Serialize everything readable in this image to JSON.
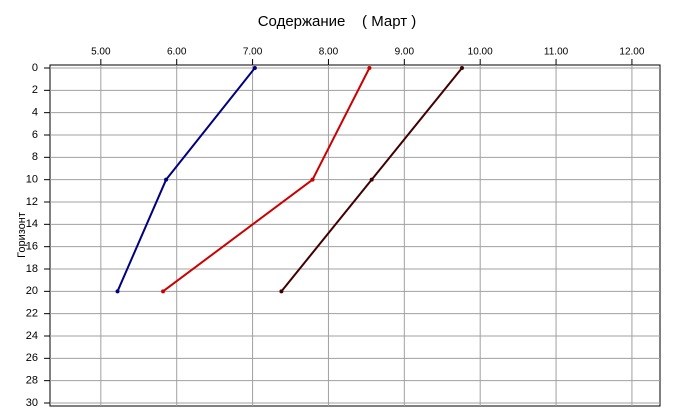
{
  "chart_data": {
    "type": "line",
    "title": "Содержание    ( Март )",
    "ylabel": "Горизонт",
    "xlim": [
      4.33,
      12.37
    ],
    "ylim": [
      0,
      30
    ],
    "y_inverted": true,
    "x_axis_position": "top",
    "grid": true,
    "xticks": [
      {
        "value": 5,
        "label": "5.00"
      },
      {
        "value": 6,
        "label": "6.00"
      },
      {
        "value": 7,
        "label": "7.00"
      },
      {
        "value": 8,
        "label": "8.00"
      },
      {
        "value": 9,
        "label": "9.00"
      },
      {
        "value": 10,
        "label": "10.00"
      },
      {
        "value": 11,
        "label": "11.00"
      },
      {
        "value": 12,
        "label": "12.00"
      }
    ],
    "yticks": [
      0,
      2,
      4,
      6,
      8,
      10,
      12,
      14,
      16,
      18,
      20,
      22,
      24,
      26,
      28,
      30
    ],
    "series": [
      {
        "color": "#000080",
        "x": [
          7.03,
          5.86,
          5.22
        ],
        "values": [
          0,
          10,
          20
        ]
      },
      {
        "color": "#cc0000",
        "x": [
          8.54,
          7.79,
          5.82
        ],
        "values": [
          0,
          10,
          20
        ]
      },
      {
        "color": "#400000",
        "x": [
          9.76,
          8.57,
          7.38
        ],
        "values": [
          0,
          10,
          20
        ]
      }
    ]
  }
}
